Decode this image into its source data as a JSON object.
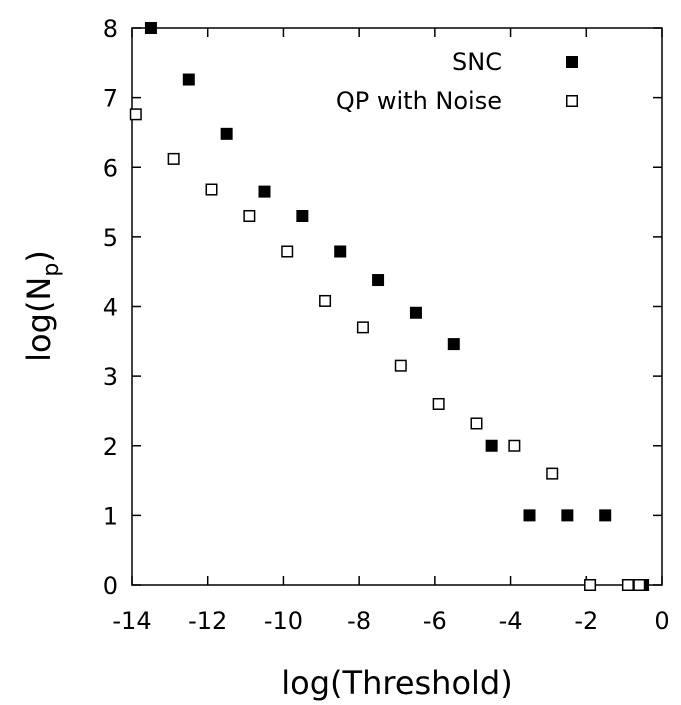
{
  "chart_data": {
    "type": "scatter",
    "xlabel": "log(Threshold)",
    "ylabel_base": "log(N",
    "ylabel_sub": "p",
    "ylabel_close": ")",
    "xlim": [
      -14,
      0
    ],
    "ylim": [
      0,
      8
    ],
    "xticks": [
      "-14",
      "-12",
      "-10",
      "-8",
      "-6",
      "-4",
      "-2",
      "0"
    ],
    "yticks": [
      "0",
      "1",
      "2",
      "3",
      "4",
      "5",
      "6",
      "7",
      "8"
    ],
    "grid": false,
    "legend": {
      "placement": "top-right"
    },
    "series": [
      {
        "name": "SNC",
        "marker": "filled-square",
        "color": "#000000",
        "points": [
          [
            -13.5,
            8.0
          ],
          [
            -12.5,
            7.26
          ],
          [
            -11.5,
            6.48
          ],
          [
            -10.5,
            5.65
          ],
          [
            -9.5,
            5.3
          ],
          [
            -8.5,
            4.79
          ],
          [
            -7.5,
            4.38
          ],
          [
            -6.5,
            3.91
          ],
          [
            -5.5,
            3.46
          ],
          [
            -4.5,
            2.0
          ],
          [
            -3.5,
            1.0
          ],
          [
            -2.5,
            1.0
          ],
          [
            -1.5,
            1.0
          ],
          [
            -0.5,
            0.0
          ]
        ]
      },
      {
        "name": "QP with Noise",
        "marker": "open-square",
        "color": "#000000",
        "points": [
          [
            -13.9,
            6.76
          ],
          [
            -12.9,
            6.12
          ],
          [
            -11.9,
            5.68
          ],
          [
            -10.9,
            5.3
          ],
          [
            -9.9,
            4.79
          ],
          [
            -8.9,
            4.08
          ],
          [
            -7.9,
            3.7
          ],
          [
            -6.9,
            3.15
          ],
          [
            -5.9,
            2.6
          ],
          [
            -4.9,
            2.32
          ],
          [
            -3.9,
            2.0
          ],
          [
            -2.9,
            1.6
          ],
          [
            -1.9,
            0.0
          ],
          [
            -0.9,
            0.0
          ],
          [
            -0.6,
            0.0
          ]
        ]
      }
    ]
  }
}
